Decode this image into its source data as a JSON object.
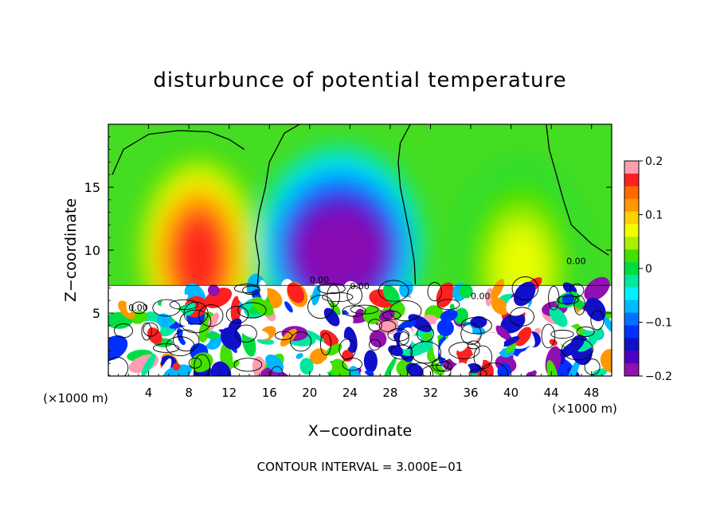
{
  "chart_data": {
    "type": "heatmap",
    "title": "disturbunce of potential temperature",
    "xlabel": "X−coordinate",
    "ylabel": "Z−coordinate",
    "x_unit_left": "(×1000 m)",
    "x_unit_right": "(×1000 m)",
    "xlim": [
      0,
      50
    ],
    "ylim": [
      0,
      20
    ],
    "xticks": [
      4,
      8,
      12,
      16,
      20,
      24,
      28,
      32,
      36,
      40,
      44,
      48
    ],
    "xtick_labels": [
      "4",
      "8",
      "12",
      "16",
      "20",
      "24",
      "28",
      "32",
      "36",
      "40",
      "44",
      "48"
    ],
    "yticks": [
      5,
      10,
      15
    ],
    "ytick_labels": [
      "5",
      "10",
      "15"
    ],
    "colorbar": {
      "range": [
        -0.2,
        0.2
      ],
      "tick_values": [
        0.2,
        0.1,
        0,
        -0.1,
        -0.2
      ],
      "tick_labels": [
        "0.2",
        "0.1",
        "0",
        "−0.1",
        "−0.2"
      ],
      "colors": [
        "#ff9eb0",
        "#ff2020",
        "#ff6a00",
        "#ff9800",
        "#ffd000",
        "#f0ff00",
        "#a8f000",
        "#44e000",
        "#00dd44",
        "#00e8a0",
        "#00f0ff",
        "#00b8ff",
        "#0070ff",
        "#0030ff",
        "#1010c8",
        "#5000c0",
        "#9010b0"
      ]
    },
    "contour_interval_text": "CONTOUR INTERVAL = 3.000E−01",
    "contour_labels": [
      "0.00",
      "0.00",
      "0.00",
      "0.00",
      "0.00"
    ],
    "upper_region_features": [
      {
        "x_center": 9,
        "z_center": 10,
        "value": 0.17
      },
      {
        "x_center": 23,
        "z_center": 10.5,
        "value": -0.18
      },
      {
        "x_center": 41,
        "z_center": 9,
        "value": 0.06
      }
    ],
    "grid": false,
    "legend": "colorbar right"
  }
}
